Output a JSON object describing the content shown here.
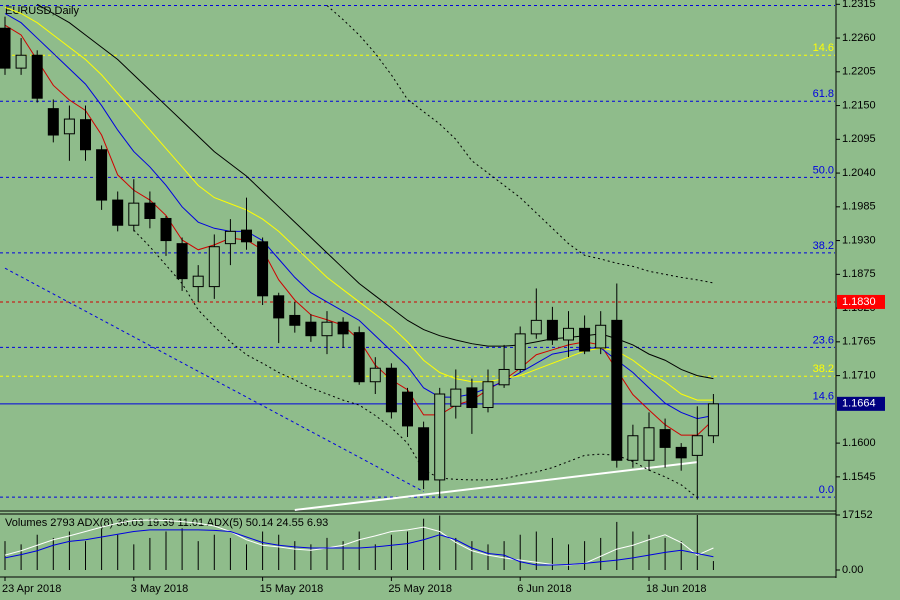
{
  "chart_data": [
    {
      "type": "candlestick",
      "title": "EURUSD,Daily",
      "categories": [
        "23 Apr 2018",
        null,
        null,
        null,
        null,
        null,
        null,
        null,
        "3 May 2018",
        null,
        null,
        null,
        null,
        null,
        null,
        null,
        "15 May 2018",
        null,
        null,
        null,
        null,
        null,
        null,
        null,
        "25 May 2018",
        null,
        null,
        null,
        null,
        null,
        null,
        null,
        "6 Jun 2018",
        null,
        null,
        null,
        null,
        null,
        null,
        null,
        "18 Jun 2018",
        null,
        null,
        null,
        null
      ],
      "open": [
        1.2276,
        1.2211,
        1.2232,
        1.2145,
        1.2104,
        1.2127,
        1.2078,
        1.1996,
        1.1955,
        1.1991,
        1.1966,
        1.1925,
        1.1855,
        1.1855,
        1.1925,
        1.1947,
        1.1928,
        1.184,
        1.1808,
        1.1797,
        1.1775,
        1.1797,
        1.178,
        1.17,
        1.1722,
        1.1683,
        1.1625,
        1.154,
        1.166,
        1.169,
        1.1658,
        1.1695,
        1.172,
        1.1778,
        1.18,
        1.1768,
        1.1787,
        1.1755,
        1.18,
        1.1572,
        1.1572,
        1.1622,
        1.1593,
        1.158,
        1.1612
      ],
      "high": [
        1.2295,
        1.226,
        1.224,
        1.216,
        1.215,
        1.215,
        1.2085,
        1.201,
        1.203,
        1.201,
        1.197,
        1.1935,
        1.189,
        1.194,
        1.1965,
        1.2,
        1.1935,
        1.1845,
        1.183,
        1.181,
        1.1815,
        1.1805,
        1.179,
        1.174,
        1.173,
        1.169,
        1.1635,
        1.169,
        1.172,
        1.1705,
        1.172,
        1.176,
        1.179,
        1.1852,
        1.1822,
        1.1815,
        1.1808,
        1.1815,
        1.186,
        1.163,
        1.165,
        1.164,
        1.16,
        1.166,
        1.168
      ],
      "low": [
        1.22,
        1.22,
        1.2155,
        1.209,
        1.206,
        1.206,
        1.198,
        1.1945,
        1.1945,
        1.195,
        1.1905,
        1.1848,
        1.183,
        1.1835,
        1.189,
        1.1915,
        1.1825,
        1.1763,
        1.178,
        1.1765,
        1.1745,
        1.1755,
        1.1695,
        1.168,
        1.164,
        1.161,
        1.1525,
        1.151,
        1.164,
        1.1615,
        1.165,
        1.169,
        1.1715,
        1.177,
        1.176,
        1.174,
        1.1745,
        1.1745,
        1.156,
        1.156,
        1.1555,
        1.156,
        1.1555,
        1.1508,
        1.16
      ],
      "close": [
        1.2211,
        1.2232,
        1.2162,
        1.2102,
        1.2128,
        1.2078,
        1.1996,
        1.1955,
        1.1991,
        1.1966,
        1.193,
        1.1868,
        1.1872,
        1.192,
        1.1945,
        1.1928,
        1.184,
        1.1804,
        1.1792,
        1.1775,
        1.1797,
        1.1778,
        1.17,
        1.1722,
        1.1651,
        1.1628,
        1.154,
        1.168,
        1.1688,
        1.1658,
        1.17,
        1.172,
        1.1778,
        1.18,
        1.1768,
        1.1787,
        1.175,
        1.1792,
        1.1572,
        1.1612,
        1.1625,
        1.1593,
        1.1576,
        1.1612,
        1.1664
      ],
      "ylim": [
        1.1491,
        1.2322
      ],
      "yticks": [
        1.2315,
        {
          "value": 1.226,
          "label": "1.2260"
        },
        1.2205,
        {
          "value": 1.215,
          "label": "1.2150"
        },
        1.2095,
        {
          "value": 1.204,
          "label": "1.2040"
        },
        1.1985,
        {
          "value": 1.193,
          "label": "1.1930"
        },
        1.1875,
        {
          "value": 1.182,
          "label": "1.1820"
        },
        1.1765,
        {
          "value": 1.171,
          "label": "1.1710"
        },
        {
          "value": 1.16,
          "label": "1.1600"
        },
        1.1545
      ],
      "overlays": [
        {
          "color": "#d00000",
          "dash": false,
          "values": [
            1.2281,
            1.2265,
            1.2224,
            1.2183,
            1.2159,
            1.2142,
            1.2102,
            1.2037,
            1.2012,
            1.1996,
            1.1971,
            1.1931,
            1.1915,
            1.1923,
            1.1934,
            1.1931,
            1.1915,
            1.1866,
            1.1833,
            1.1809,
            1.1801,
            1.1792,
            1.1768,
            1.1727,
            1.1703,
            1.1687,
            1.1646,
            1.1646,
            1.1662,
            1.167,
            1.1687,
            1.1703,
            1.1722,
            1.1744,
            1.1752,
            1.176,
            1.1765,
            1.176,
            1.1719,
            1.1679,
            1.1654,
            1.163,
            1.1613,
            1.1613,
            1.1638
          ]
        },
        {
          "color": "#0000e0",
          "dash": false,
          "values": [
            1.23,
            1.2285,
            1.226,
            1.2235,
            1.221,
            1.2185,
            1.215,
            1.211,
            1.2075,
            1.205,
            1.202,
            1.1985,
            1.196,
            1.195,
            1.1945,
            1.1945,
            1.193,
            1.19,
            1.187,
            1.1845,
            1.183,
            1.1815,
            1.18,
            1.1775,
            1.175,
            1.1725,
            1.169,
            1.1675,
            1.1675,
            1.168,
            1.169,
            1.17,
            1.1715,
            1.173,
            1.1745,
            1.175,
            1.1755,
            1.1755,
            1.1735,
            1.1715,
            1.169,
            1.1665,
            1.165,
            1.164,
            1.1645
          ]
        },
        {
          "color": "#ffff00",
          "dash": false,
          "values": [
            1.231,
            1.23,
            1.2285,
            1.2265,
            1.2245,
            1.2225,
            1.22,
            1.217,
            1.214,
            1.211,
            1.208,
            1.205,
            1.202,
            1.2,
            1.199,
            1.198,
            1.1965,
            1.1945,
            1.192,
            1.1895,
            1.187,
            1.185,
            1.183,
            1.181,
            1.179,
            1.1765,
            1.1735,
            1.1715,
            1.1705,
            1.17,
            1.17,
            1.1705,
            1.171,
            1.172,
            1.173,
            1.174,
            1.175,
            1.1755,
            1.175,
            1.1735,
            1.1715,
            1.17,
            1.168,
            1.167,
            1.167
          ]
        },
        {
          "color": "#000000",
          "dash": false,
          "values": [
            null,
            null,
            1.2315,
            1.23,
            1.2285,
            1.2265,
            1.2245,
            1.2225,
            1.22,
            1.2175,
            1.215,
            1.2125,
            1.21,
            1.2075,
            1.2055,
            1.2035,
            1.201,
            1.1985,
            1.196,
            1.1935,
            1.191,
            1.1885,
            1.186,
            1.184,
            1.182,
            1.18,
            1.1785,
            1.1775,
            1.1768,
            1.1762,
            1.1758,
            1.1758,
            1.176,
            1.1765,
            1.177,
            1.1772,
            1.1775,
            1.1778,
            1.177,
            1.176,
            1.1745,
            1.1735,
            1.172,
            1.171,
            1.1705
          ]
        },
        {
          "color": "#000000",
          "dash": true,
          "values": [
            null,
            null,
            null,
            null,
            null,
            null,
            null,
            null,
            null,
            null,
            null,
            null,
            null,
            null,
            null,
            null,
            null,
            null,
            null,
            null,
            1.2313,
            1.229,
            1.2265,
            1.2235,
            1.22,
            1.216,
            1.214,
            1.212,
            1.2095,
            1.206,
            1.204,
            1.202,
            1.2,
            1.1975,
            1.195,
            1.1925,
            1.1906,
            1.19,
            1.1893,
            1.1888,
            1.188,
            1.1875,
            1.187,
            1.1866,
            1.1861
          ]
        },
        {
          "color": "#000000",
          "dash": true,
          "values": [
            null,
            null,
            null,
            null,
            null,
            null,
            null,
            null,
            1.1947,
            1.192,
            1.189,
            1.186,
            1.1817,
            1.179,
            1.1765,
            1.1744,
            1.173,
            1.1715,
            1.1703,
            1.169,
            1.168,
            1.167,
            1.1662,
            1.1645,
            1.1625,
            1.16,
            1.1556,
            1.1543,
            1.1541,
            1.154,
            1.154,
            1.1542,
            1.1548,
            1.1553,
            1.156,
            1.157,
            1.158,
            1.1582,
            1.158,
            1.157,
            1.1556,
            1.1545,
            1.1532,
            1.1511,
            null
          ]
        }
      ],
      "trendlines": [
        {
          "color": "#ffffff",
          "dash": false,
          "x": [
            18,
            43
          ],
          "y": [
            1.1491,
            1.1569
          ]
        },
        {
          "color": "#0000e0",
          "dash": true,
          "x": [
            0,
            26
          ],
          "y": [
            1.1885,
            1.1521
          ]
        }
      ],
      "levels": [
        {
          "value": 1.2313,
          "label": null,
          "color": "#0000e0",
          "dash": true
        },
        {
          "value": 1.2232,
          "label": "14.6",
          "color": "#ffff00",
          "dash": true
        },
        {
          "value": 1.2157,
          "label": "61.8",
          "color": "#0000e0",
          "dash": true
        },
        {
          "value": 1.2033,
          "label": "50.0",
          "color": "#0000e0",
          "dash": true
        },
        {
          "value": 1.191,
          "label": "38.2",
          "color": "#0000e0",
          "dash": true
        },
        {
          "value": 1.183,
          "label": null,
          "color": "#d00000",
          "dash": true
        },
        {
          "value": 1.1756,
          "label": "23.6",
          "color": "#0000e0",
          "dash": true
        },
        {
          "value": 1.1709,
          "label": "38.2",
          "color": "#ffff00",
          "dash": true
        },
        {
          "value": 1.1664,
          "label": "14.6",
          "color": "#0000e0",
          "dash": false
        },
        {
          "value": 1.1512,
          "label": "0.0",
          "color": "#0000e0",
          "dash": true
        }
      ],
      "price_labels": [
        {
          "value": 1.183,
          "label": "1.1830",
          "color": "#ff0000"
        },
        {
          "value": 1.1664,
          "color": "#000080"
        }
      ]
    },
    {
      "type": "indicator",
      "title": "Volumes 2793 ADX(8) 36.03 19.39 11.01 ADX(5) 50.14 24.55 6.93",
      "values": [
        9000,
        8000,
        11000,
        10000,
        12000,
        9000,
        13000,
        11000,
        8000,
        10000,
        12000,
        13000,
        9000,
        11000,
        10000,
        8000,
        12000,
        11000,
        9000,
        8000,
        10000,
        9000,
        12000,
        8000,
        11000,
        12000,
        16000,
        17000,
        10000,
        9000,
        8000,
        9000,
        11000,
        12000,
        10000,
        8000,
        9000,
        10000,
        15000,
        12000,
        11000,
        10000,
        9000,
        17152,
        2793
      ],
      "color": "#000000",
      "ylim": [
        0,
        17152
      ],
      "yticks": [
        17152,
        {
          "value": 0,
          "label": "0.00"
        }
      ],
      "y2lim": [
        0,
        100
      ],
      "series": [
        {
          "color": "#ffffff",
          "axis": "y2",
          "values": [
            27,
            35,
            45,
            55,
            62,
            70,
            78,
            85,
            90,
            91,
            90,
            88,
            85,
            80,
            70,
            55,
            45,
            42,
            38,
            36,
            40,
            45,
            55,
            62,
            70,
            73,
            78,
            70,
            50,
            35,
            27,
            22,
            18,
            14,
            10,
            9,
            12,
            25,
            38,
            45,
            55,
            64,
            50,
            27,
            40
          ]
        },
        {
          "color": "#0000e0",
          "axis": "y2",
          "values": [
            22,
            28,
            35,
            45,
            52,
            55,
            60,
            65,
            70,
            73,
            73,
            73,
            73,
            72,
            70,
            60,
            50,
            45,
            42,
            40,
            40,
            40,
            40,
            42,
            45,
            48,
            55,
            64,
            55,
            40,
            30,
            27,
            15,
            9,
            9,
            10,
            12,
            15,
            18,
            22,
            27,
            32,
            36,
            30,
            24
          ]
        }
      ]
    }
  ]
}
